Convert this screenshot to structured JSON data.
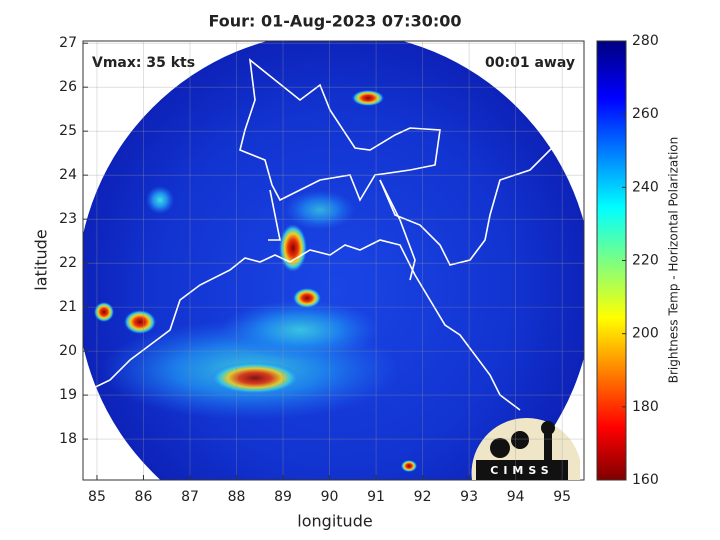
{
  "chart_data": {
    "type": "map",
    "title": "Four: 01-Aug-2023 07:30:00",
    "annotations": [
      "Vmax: 35 kts",
      "00:01 away"
    ],
    "x_label": "longitude",
    "y_label": "latitude",
    "xlim": [
      84.7,
      95.47
    ],
    "xticks": [
      85,
      86,
      87,
      88,
      89,
      90,
      91,
      92,
      93,
      94,
      95
    ],
    "ylim": [
      17.07,
      27.05
    ],
    "yticks": [
      18,
      19,
      20,
      21,
      22,
      23,
      24,
      25,
      26,
      27
    ],
    "grid": true,
    "colorbar": {
      "label": "Brightness Temp - Horizontal Polarization",
      "lim": [
        160,
        280
      ],
      "ticks": [
        160,
        180,
        200,
        220,
        240,
        260,
        280
      ]
    },
    "logo_text": "CIMSS"
  }
}
